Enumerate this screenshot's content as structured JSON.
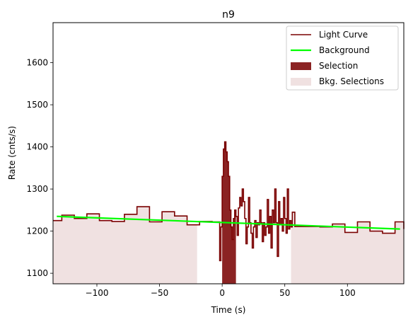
{
  "chart_data": {
    "type": "line",
    "title": "n9",
    "xlabel": "Time (s)",
    "ylabel": "Rate (cnts/s)",
    "xlim": [
      -135,
      145
    ],
    "ylim": [
      1075,
      1695
    ],
    "xticks": [
      -100,
      -50,
      0,
      50,
      100
    ],
    "xtick_labels": [
      "−100",
      "−50",
      "0",
      "50",
      "100"
    ],
    "yticks": [
      1100,
      1200,
      1300,
      1400,
      1500,
      1600
    ],
    "ytick_labels": [
      "1100",
      "1200",
      "1300",
      "1400",
      "1500",
      "1600"
    ],
    "grid": false,
    "legend_position": "top-right",
    "legend": [
      {
        "label": "Light Curve",
        "kind": "line",
        "color": "#7a0000"
      },
      {
        "label": "Background",
        "kind": "line",
        "color": "#00ff00"
      },
      {
        "label": "Selection",
        "kind": "patch",
        "color": "#8b2323"
      },
      {
        "label": "Bkg. Selections",
        "kind": "patch",
        "color": "#f0e1e1"
      }
    ],
    "light_curve": {
      "color": "#7a0000",
      "edges": [
        -135,
        -128,
        -118,
        -108,
        -98,
        -88,
        -78,
        -68,
        -58,
        -48,
        -38,
        -28,
        -18,
        -8,
        -2,
        -1,
        0,
        1,
        2,
        3,
        4,
        5,
        6,
        7,
        8,
        9,
        10,
        11,
        12,
        13,
        14,
        15,
        16,
        17,
        18,
        19,
        20,
        21,
        22,
        23,
        24,
        25,
        26,
        27,
        28,
        29,
        30,
        31,
        32,
        33,
        34,
        35,
        36,
        37,
        38,
        39,
        40,
        41,
        42,
        43,
        44,
        45,
        46,
        47,
        48,
        49,
        50,
        51,
        52,
        53,
        54,
        55,
        56,
        58,
        68,
        78,
        88,
        98,
        108,
        118,
        128,
        138,
        145
      ],
      "rates": [
        1225,
        1238,
        1230,
        1241,
        1225,
        1223,
        1240,
        1258,
        1222,
        1246,
        1236,
        1215,
        1223,
        1222,
        1130,
        1210,
        1330,
        1395,
        1412,
        1388,
        1365,
        1330,
        1250,
        1210,
        1180,
        1230,
        1250,
        1235,
        1190,
        1255,
        1280,
        1260,
        1300,
        1270,
        1230,
        1170,
        1210,
        1280,
        1220,
        1195,
        1160,
        1210,
        1225,
        1185,
        1220,
        1215,
        1250,
        1220,
        1175,
        1220,
        1190,
        1210,
        1275,
        1195,
        1235,
        1160,
        1250,
        1220,
        1300,
        1220,
        1140,
        1270,
        1215,
        1230,
        1200,
        1280,
        1230,
        1195,
        1300,
        1205,
        1225,
        1210,
        1245,
        1211,
        1211,
        1210,
        1217,
        1197,
        1222,
        1200,
        1195,
        1222,
        1205
      ]
    },
    "background": {
      "color": "#00ff00",
      "x": [
        -132,
        142
      ],
      "y": [
        1235,
        1205
      ]
    },
    "selection": {
      "color": "#8b2323",
      "x_range": [
        0,
        11
      ]
    },
    "bkg_selections": [
      {
        "color": "#f0e1e1",
        "x_range": [
          -135,
          -20
        ]
      },
      {
        "color": "#f0e1e1",
        "x_range": [
          55,
          145
        ]
      }
    ]
  }
}
